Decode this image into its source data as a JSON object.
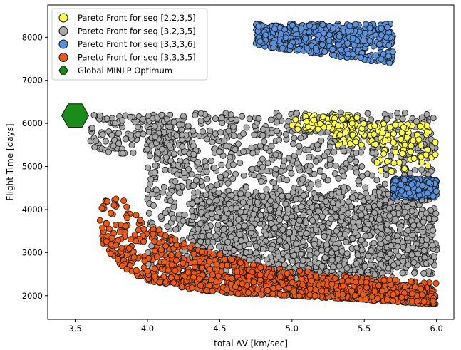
{
  "chart_data": {
    "type": "scatter",
    "title": "",
    "xlabel": "total ΔV [km/sec]",
    "ylabel": "Flight Time [days]",
    "xlim": [
      3.31,
      6.12
    ],
    "ylim": [
      1450,
      8750
    ],
    "xticks": [
      3.5,
      4.0,
      4.5,
      5.0,
      5.5,
      6.0
    ],
    "xtick_labels": [
      "3.5",
      "4.0",
      "4.5",
      "5.0",
      "5.5",
      "6.0"
    ],
    "yticks": [
      2000,
      3000,
      4000,
      5000,
      6000,
      7000,
      8000
    ],
    "ytick_labels": [
      "2000",
      "3000",
      "4000",
      "5000",
      "6000",
      "7000",
      "8000"
    ],
    "grid": false,
    "legend_position": "top-left",
    "series": [
      {
        "name": "Pareto Front for seq [2,2,3,5]",
        "color": "#ffff44",
        "marker": "circle",
        "regions": [
          {
            "x": [
              5.0,
              5.45
            ],
            "y": [
              5850,
              6200
            ],
            "count": 70
          },
          {
            "x": [
              5.3,
              5.95
            ],
            "y": [
              5500,
              6000
            ],
            "count": 90
          },
          {
            "x": [
              5.55,
              6.0
            ],
            "y": [
              4800,
              5650
            ],
            "count": 40
          }
        ]
      },
      {
        "name": "Pareto Front for seq [3,2,3,5]",
        "color": "#a8a8a8",
        "marker": "circle",
        "regions": [
          {
            "x": [
              3.6,
              4.3
            ],
            "y": [
              5300,
              6200
            ],
            "count": 160
          },
          {
            "x": [
              4.0,
              6.0
            ],
            "y": [
              2500,
              6250
            ],
            "count": 1400
          },
          {
            "x": [
              4.3,
              5.7
            ],
            "y": [
              2300,
              4400
            ],
            "count": 900
          },
          {
            "x": [
              5.6,
              6.0
            ],
            "y": [
              2700,
              4500
            ],
            "count": 160
          }
        ]
      },
      {
        "name": "Pareto Front for seq [3,3,3,6]",
        "color": "#5b92dd",
        "marker": "circle",
        "regions": [
          {
            "x": [
              4.75,
              5.7
            ],
            "y": [
              7400,
              8320
            ],
            "count": 520
          },
          {
            "x": [
              5.7,
              6.0
            ],
            "y": [
              4280,
              4720
            ],
            "count": 380
          }
        ]
      },
      {
        "name": "Pareto Front for seq [3,3,3,5]",
        "color": "#ee5a11",
        "marker": "circle",
        "frontier": [
          [
            3.67,
            3300
          ],
          [
            3.75,
            2950
          ],
          [
            3.85,
            2600
          ],
          [
            4.0,
            2350
          ],
          [
            4.3,
            2150
          ],
          [
            4.6,
            2050
          ],
          [
            5.0,
            2000
          ],
          [
            6.0,
            1800
          ]
        ],
        "upper_edge": [
          [
            3.8,
            4320
          ],
          [
            4.0,
            3700
          ],
          [
            4.25,
            3250
          ],
          [
            4.5,
            2950
          ],
          [
            4.8,
            2700
          ],
          [
            5.2,
            2520
          ],
          [
            5.6,
            2400
          ],
          [
            6.0,
            2300
          ]
        ],
        "count": 1200
      },
      {
        "name": "Global MINLP Optimum",
        "color": "#1a8c1a",
        "marker": "hexagon",
        "x": 3.5,
        "y": 6180
      }
    ]
  }
}
